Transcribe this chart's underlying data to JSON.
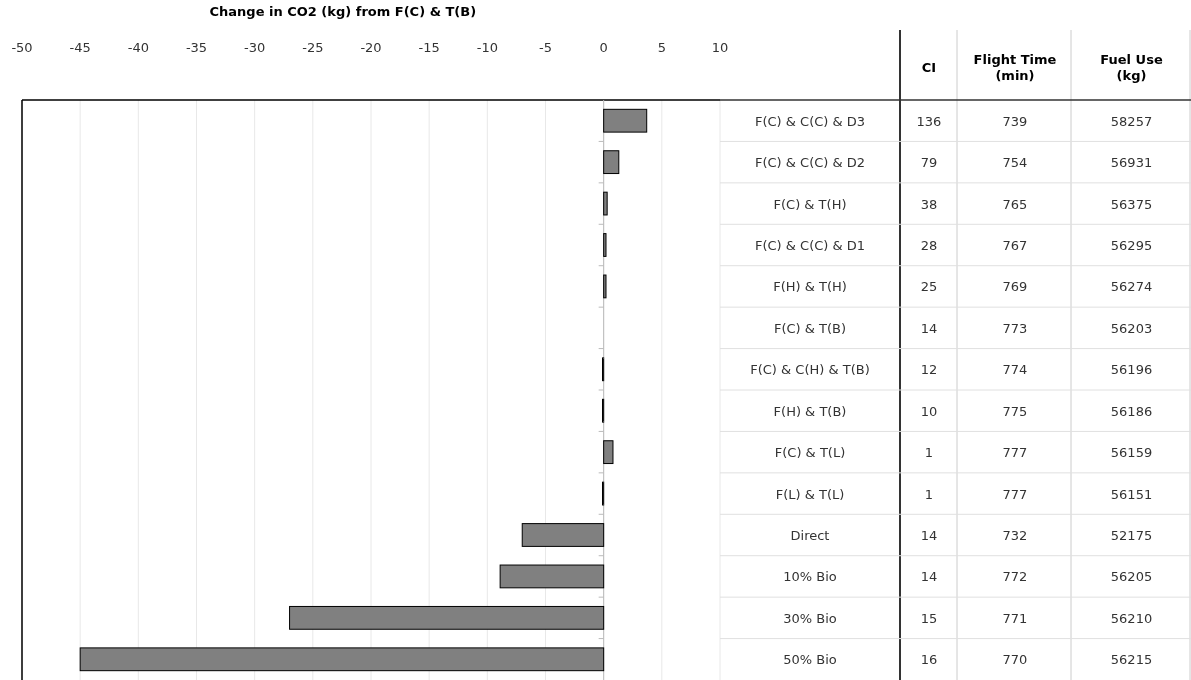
{
  "chart_data": [
    {
      "type": "bar",
      "orientation": "horizontal",
      "title": "Change in CO2 (kg) from F(C) & T(B)",
      "values": [
        3.7,
        1.3,
        0.3,
        0.2,
        0.2,
        0,
        -0.1,
        -0.1,
        0.8,
        -0.1,
        -7,
        -8.9,
        -27,
        -45
      ],
      "color": "#808080",
      "xlim": [
        -50,
        10
      ],
      "xticks": [
        -50,
        -45,
        -40,
        -35,
        -30,
        -25,
        -20,
        -15,
        -10,
        -5,
        0,
        5,
        10
      ],
      "grid": "x",
      "tick_labels": "x"
    },
    {
      "type": "other",
      "categories": [
        "F(C) & C(C) & D3",
        "F(C) & C(C) & D2",
        "F(C) & T(H)",
        "F(C) & C(C) & D1",
        "F(H) & T(H)",
        "F(C) & T(B)",
        "F(C) & C(H) & T(B)",
        "F(H) & T(B)",
        "F(C) & T(L)",
        "F(L) & T(L)",
        "Direct",
        "10% Bio",
        "30% Bio",
        "50% Bio"
      ],
      "series": [
        {
          "name": "CI",
          "values": [
            136,
            79,
            38,
            28,
            25,
            14,
            12,
            10,
            1,
            1,
            14,
            14,
            15,
            16
          ]
        },
        {
          "name": "Flight Time (min)",
          "values": [
            739,
            754,
            765,
            767,
            769,
            773,
            774,
            775,
            777,
            777,
            732,
            772,
            771,
            770
          ]
        },
        {
          "name": "Fuel Use (kg)",
          "values": [
            58257,
            56931,
            56375,
            56295,
            56274,
            56203,
            56196,
            56186,
            56159,
            56151,
            52175,
            56205,
            56210,
            56215
          ]
        }
      ],
      "data_labels": true
    }
  ]
}
